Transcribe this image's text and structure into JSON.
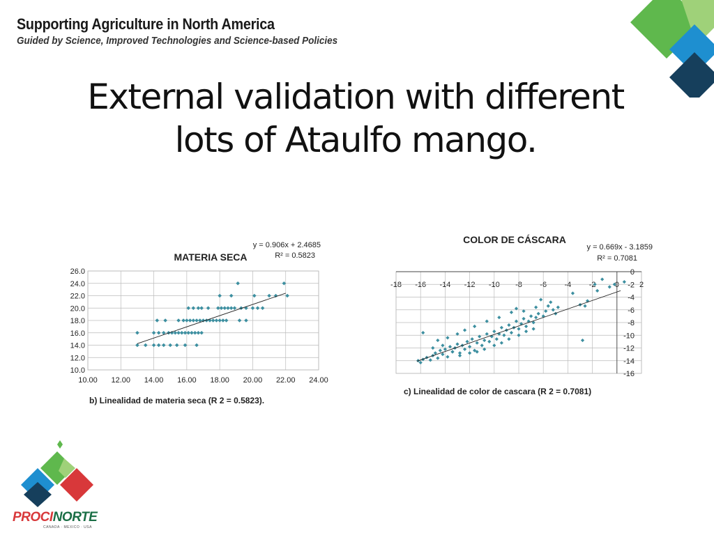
{
  "header": {
    "title": "Supporting Agriculture in North America",
    "subtitle": "Guided by Science, Improved Technologies and Science-based Policies"
  },
  "slide": {
    "title_line1": "External validation with different",
    "title_line2": "lots of Ataulfo mango."
  },
  "logo": {
    "name_part1": "PROCI",
    "name_part2": "NORTE",
    "countries": "CANADA · MEXICO · USA"
  },
  "colors": {
    "green": "#5fb84d",
    "light_green": "#9fd179",
    "blue": "#1e8fd0",
    "navy": "#163f5c",
    "red": "#d8383a",
    "point": "#3d8fa0"
  },
  "chart_data": [
    {
      "type": "scatter",
      "title": "MATERIA SECA",
      "caption": "b) Linealidad de materia seca (R 2 = 0.5823).",
      "equation": "y = 0.906x + 2.4685",
      "r2_label": "R² = 0.5823",
      "xlim": [
        10,
        24
      ],
      "ylim": [
        10,
        26
      ],
      "xticks": [
        "10.00",
        "12.00",
        "14.00",
        "16.00",
        "18.00",
        "20.00",
        "22.00",
        "24.00"
      ],
      "yticks": [
        "10.0",
        "12.0",
        "14.0",
        "16.0",
        "18.0",
        "20.0",
        "22.0",
        "24.0",
        "26.0"
      ],
      "grid": true,
      "trendline": {
        "slope": 0.906,
        "intercept": 2.4685,
        "x_range": [
          13,
          22
        ]
      },
      "points": [
        [
          13.0,
          14
        ],
        [
          13.0,
          16
        ],
        [
          13.5,
          14
        ],
        [
          14.0,
          14
        ],
        [
          14.3,
          14
        ],
        [
          14.6,
          14
        ],
        [
          15.0,
          14
        ],
        [
          15.4,
          14
        ],
        [
          15.9,
          14
        ],
        [
          16.6,
          14
        ],
        [
          14.0,
          16
        ],
        [
          14.3,
          16
        ],
        [
          14.6,
          16
        ],
        [
          14.9,
          16
        ],
        [
          15.1,
          16
        ],
        [
          15.3,
          16
        ],
        [
          15.5,
          16
        ],
        [
          15.7,
          16
        ],
        [
          15.9,
          16
        ],
        [
          16.1,
          16
        ],
        [
          16.3,
          16
        ],
        [
          16.5,
          16
        ],
        [
          16.7,
          16
        ],
        [
          16.9,
          16
        ],
        [
          14.2,
          18
        ],
        [
          14.7,
          18
        ],
        [
          15.5,
          18
        ],
        [
          15.8,
          18
        ],
        [
          16.0,
          18
        ],
        [
          16.2,
          18
        ],
        [
          16.4,
          18
        ],
        [
          16.6,
          18
        ],
        [
          16.8,
          18
        ],
        [
          17.0,
          18
        ],
        [
          17.2,
          18
        ],
        [
          17.4,
          18
        ],
        [
          17.6,
          18
        ],
        [
          17.8,
          18
        ],
        [
          18.0,
          18
        ],
        [
          18.2,
          18
        ],
        [
          18.4,
          18
        ],
        [
          19.2,
          18
        ],
        [
          19.6,
          18
        ],
        [
          16.1,
          20
        ],
        [
          16.4,
          20
        ],
        [
          16.7,
          20
        ],
        [
          16.9,
          20
        ],
        [
          17.3,
          20
        ],
        [
          17.9,
          20
        ],
        [
          18.1,
          20
        ],
        [
          18.3,
          20
        ],
        [
          18.5,
          20
        ],
        [
          18.7,
          20
        ],
        [
          18.9,
          20
        ],
        [
          19.3,
          20
        ],
        [
          19.6,
          20
        ],
        [
          20.0,
          20
        ],
        [
          20.3,
          20
        ],
        [
          20.6,
          20
        ],
        [
          18.0,
          22
        ],
        [
          18.7,
          22
        ],
        [
          20.1,
          22
        ],
        [
          21.0,
          22
        ],
        [
          21.4,
          22
        ],
        [
          22.1,
          22
        ],
        [
          19.1,
          24
        ],
        [
          21.9,
          24
        ]
      ]
    },
    {
      "type": "scatter",
      "title": "COLOR DE CÁSCARA",
      "caption": "c) Linealidad de color de cascara (R 2 = 0.7081)",
      "equation": "y = 0.669x - 3.1859",
      "r2_label": "R² = 0.7081",
      "xlim": [
        -18,
        2
      ],
      "ylim": [
        -16,
        0
      ],
      "xticks": [
        "-18",
        "-16",
        "-14",
        "-12",
        "-10",
        "-8",
        "-6",
        "-4",
        "-2",
        "0",
        "2"
      ],
      "yticks": [
        "0",
        "-2",
        "-4",
        "-6",
        "-8",
        "-10",
        "-12",
        "-14",
        "-16"
      ],
      "grid": true,
      "trendline": {
        "slope": 0.669,
        "intercept": -3.1859,
        "x_range": [
          -16.3,
          0.3
        ]
      },
      "points": [
        [
          -16.2,
          -14
        ],
        [
          -16.0,
          -14.3
        ],
        [
          -15.8,
          -13.8
        ],
        [
          -15.5,
          -13.5
        ],
        [
          -15.2,
          -13.9
        ],
        [
          -15.0,
          -13.2
        ],
        [
          -14.8,
          -12.8
        ],
        [
          -14.6,
          -13.6
        ],
        [
          -14.4,
          -12.4
        ],
        [
          -14.2,
          -13.0
        ],
        [
          -14.0,
          -12.2
        ],
        [
          -13.8,
          -13.4
        ],
        [
          -13.6,
          -11.8
        ],
        [
          -13.4,
          -12.6
        ],
        [
          -13.2,
          -12.0
        ],
        [
          -13.0,
          -11.4
        ],
        [
          -12.8,
          -12.8
        ],
        [
          -12.6,
          -11.6
        ],
        [
          -12.4,
          -12.2
        ],
        [
          -12.2,
          -11.0
        ],
        [
          -12.0,
          -11.8
        ],
        [
          -11.8,
          -10.6
        ],
        [
          -11.6,
          -12.4
        ],
        [
          -11.4,
          -11.2
        ],
        [
          -11.2,
          -10.2
        ],
        [
          -11.0,
          -11.6
        ],
        [
          -10.8,
          -10.8
        ],
        [
          -10.6,
          -9.8
        ],
        [
          -10.4,
          -11.0
        ],
        [
          -10.2,
          -10.2
        ],
        [
          -10.0,
          -9.4
        ],
        [
          -9.8,
          -10.6
        ],
        [
          -9.6,
          -9.8
        ],
        [
          -9.4,
          -8.8
        ],
        [
          -9.2,
          -10.0
        ],
        [
          -9.0,
          -9.2
        ],
        [
          -8.8,
          -8.4
        ],
        [
          -8.6,
          -9.6
        ],
        [
          -8.4,
          -8.8
        ],
        [
          -8.2,
          -7.8
        ],
        [
          -8.0,
          -9.0
        ],
        [
          -7.8,
          -8.2
        ],
        [
          -7.6,
          -7.4
        ],
        [
          -7.4,
          -8.6
        ],
        [
          -7.2,
          -7.8
        ],
        [
          -7.0,
          -7.0
        ],
        [
          -6.8,
          -8.0
        ],
        [
          -6.6,
          -7.2
        ],
        [
          -6.4,
          -6.6
        ],
        [
          -6.0,
          -7.0
        ],
        [
          -5.8,
          -6.2
        ],
        [
          -5.6,
          -5.4
        ],
        [
          -5.2,
          -6.0
        ],
        [
          -5.0,
          -6.6
        ],
        [
          -4.8,
          -5.6
        ],
        [
          -15.8,
          -9.6
        ],
        [
          -14.6,
          -10.8
        ],
        [
          -13.8,
          -10.4
        ],
        [
          -13.0,
          -9.8
        ],
        [
          -12.4,
          -9.2
        ],
        [
          -11.6,
          -8.6
        ],
        [
          -10.6,
          -7.8
        ],
        [
          -9.6,
          -7.2
        ],
        [
          -8.6,
          -6.4
        ],
        [
          -8.2,
          -5.8
        ],
        [
          -7.6,
          -6.2
        ],
        [
          -6.6,
          -5.6
        ],
        [
          -6.2,
          -4.4
        ],
        [
          -5.4,
          -4.8
        ],
        [
          -15.0,
          -12.0
        ],
        [
          -14.2,
          -11.6
        ],
        [
          -13.4,
          -12.6
        ],
        [
          -12.8,
          -13.2
        ],
        [
          -12.0,
          -12.8
        ],
        [
          -11.4,
          -12.6
        ],
        [
          -10.8,
          -12.2
        ],
        [
          -10.0,
          -11.6
        ],
        [
          -9.4,
          -11.2
        ],
        [
          -8.8,
          -10.6
        ],
        [
          -8.0,
          -10.0
        ],
        [
          -7.4,
          -9.4
        ],
        [
          -6.8,
          -9.0
        ],
        [
          -3.0,
          -5.2
        ],
        [
          -2.6,
          -5.4
        ],
        [
          -2.4,
          -4.6
        ],
        [
          -3.6,
          -3.4
        ],
        [
          -1.8,
          -2.0
        ],
        [
          -1.2,
          -1.2
        ],
        [
          -0.6,
          -2.4
        ],
        [
          -0.2,
          -2.0
        ],
        [
          0.6,
          -1.6
        ],
        [
          -1.6,
          -3.0
        ],
        [
          -2.8,
          -10.8
        ]
      ]
    }
  ]
}
